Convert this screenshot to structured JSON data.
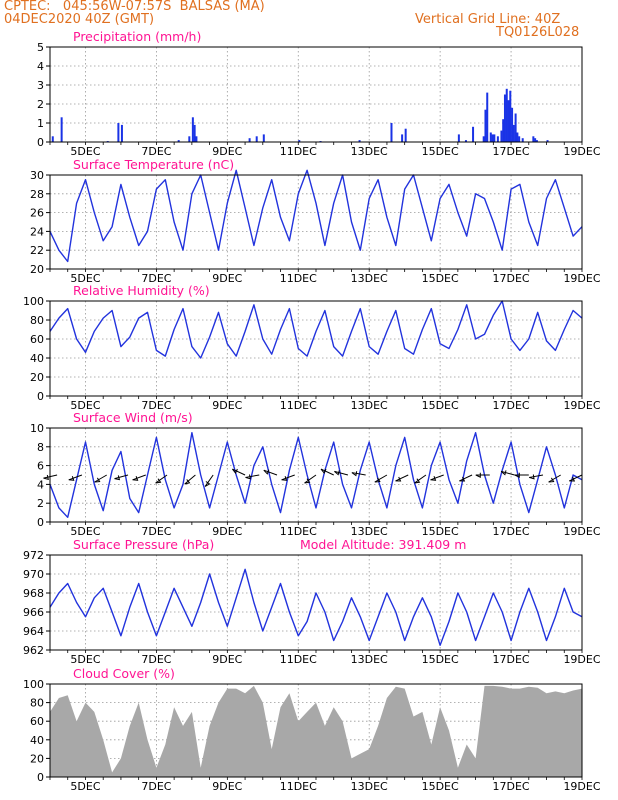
{
  "header": {
    "line1": "CPTEC:   045:56W-07:57S  BALSAS (MA)",
    "line2": "04DEC2020 40Z (GMT)",
    "right1": "Vertical Grid Line: 40Z",
    "right2": "TQ0126L028"
  },
  "colors": {
    "header": "#e07020",
    "title": "#ff1493",
    "line": "#2233dd",
    "bar": "#1a33e6",
    "cloud": "#a8a8a8",
    "grid": "#999999",
    "arrow": "#000000"
  },
  "x_labels": [
    "5DEC",
    "7DEC",
    "9DEC",
    "11DEC",
    "13DEC",
    "15DEC",
    "17DEC",
    "19DEC"
  ],
  "chart_data": [
    {
      "type": "bar",
      "title": "Precipitation (mm/h)",
      "ylim": [
        0,
        5
      ],
      "yticks": [
        "0",
        "1",
        "2",
        "3",
        "4",
        "5"
      ],
      "x_unit": "days since 04DEC",
      "bars": [
        [
          0.05,
          0.3
        ],
        [
          0.3,
          1.3
        ],
        [
          1.6,
          0.05
        ],
        [
          1.9,
          1.0
        ],
        [
          2.0,
          0.9
        ],
        [
          3.6,
          0.1
        ],
        [
          3.9,
          0.3
        ],
        [
          4.0,
          1.3
        ],
        [
          4.05,
          0.9
        ],
        [
          4.1,
          0.3
        ],
        [
          5.6,
          0.2
        ],
        [
          5.8,
          0.3
        ],
        [
          6.0,
          0.4
        ],
        [
          7.0,
          0.1
        ],
        [
          7.6,
          0.05
        ],
        [
          8.7,
          0.1
        ],
        [
          9.6,
          1.0
        ],
        [
          9.9,
          0.4
        ],
        [
          10.0,
          0.7
        ],
        [
          11.5,
          0.4
        ],
        [
          11.7,
          0.1
        ],
        [
          11.9,
          0.8
        ],
        [
          12.2,
          0.3
        ],
        [
          12.25,
          1.7
        ],
        [
          12.3,
          2.6
        ],
        [
          12.4,
          0.5
        ],
        [
          12.45,
          0.4
        ],
        [
          12.5,
          0.4
        ],
        [
          12.6,
          0.3
        ],
        [
          12.7,
          0.6
        ],
        [
          12.75,
          1.2
        ],
        [
          12.8,
          2.5
        ],
        [
          12.85,
          2.8
        ],
        [
          12.9,
          2.2
        ],
        [
          12.95,
          2.7
        ],
        [
          13.0,
          1.8
        ],
        [
          13.05,
          0.9
        ],
        [
          13.1,
          1.5
        ],
        [
          13.15,
          0.5
        ],
        [
          13.2,
          0.3
        ],
        [
          13.3,
          0.2
        ],
        [
          13.6,
          0.3
        ],
        [
          13.65,
          0.2
        ],
        [
          13.7,
          0.1
        ],
        [
          14.0,
          0.1
        ]
      ]
    },
    {
      "type": "line",
      "title": "Surface Temperature (nC)",
      "ylim": [
        20,
        30
      ],
      "yticks": [
        "20",
        "22",
        "24",
        "26",
        "28",
        "30"
      ],
      "x": [
        0.0,
        0.25,
        0.5,
        0.75,
        1.0,
        1.25,
        1.5,
        1.75,
        2.0,
        2.25,
        2.5,
        2.75,
        3.0,
        3.25,
        3.5,
        3.75,
        4.0,
        4.25,
        4.5,
        4.75,
        5.0,
        5.25,
        5.5,
        5.75,
        6.0,
        6.25,
        6.5,
        6.75,
        7.0,
        7.25,
        7.5,
        7.75,
        8.0,
        8.25,
        8.5,
        8.75,
        9.0,
        9.25,
        9.5,
        9.75,
        10.0,
        10.25,
        10.5,
        10.75,
        11.0,
        11.25,
        11.5,
        11.75,
        12.0,
        12.25,
        12.5,
        12.75,
        13.0,
        13.25,
        13.5,
        13.75,
        14.0,
        14.25,
        14.5,
        14.75,
        15.0
      ],
      "y": [
        24.0,
        22.0,
        20.8,
        27.0,
        29.5,
        26.0,
        23.0,
        24.5,
        29.0,
        25.5,
        22.5,
        24.0,
        28.5,
        29.5,
        25.0,
        22.0,
        28.0,
        30.0,
        26.0,
        22.0,
        27.0,
        30.5,
        26.5,
        22.5,
        26.5,
        29.5,
        25.5,
        23.0,
        28.0,
        30.5,
        27.0,
        22.5,
        27.0,
        30.0,
        25.0,
        22.0,
        27.5,
        29.5,
        25.5,
        22.5,
        28.5,
        30.0,
        26.5,
        23.0,
        27.5,
        29.0,
        26.0,
        23.5,
        28.0,
        27.5,
        25.0,
        22.0,
        28.5,
        29.0,
        25.0,
        22.5,
        27.5,
        29.5,
        26.5,
        23.5,
        24.5
      ]
    },
    {
      "type": "line",
      "title": "Relative Humidity (%)",
      "ylim": [
        0,
        100
      ],
      "yticks": [
        "0",
        "20",
        "40",
        "60",
        "80",
        "100"
      ],
      "x": [
        0.0,
        0.25,
        0.5,
        0.75,
        1.0,
        1.25,
        1.5,
        1.75,
        2.0,
        2.25,
        2.5,
        2.75,
        3.0,
        3.25,
        3.5,
        3.75,
        4.0,
        4.25,
        4.5,
        4.75,
        5.0,
        5.25,
        5.5,
        5.75,
        6.0,
        6.25,
        6.5,
        6.75,
        7.0,
        7.25,
        7.5,
        7.75,
        8.0,
        8.25,
        8.5,
        8.75,
        9.0,
        9.25,
        9.5,
        9.75,
        10.0,
        10.25,
        10.5,
        10.75,
        11.0,
        11.25,
        11.5,
        11.75,
        12.0,
        12.25,
        12.5,
        12.75,
        13.0,
        13.25,
        13.5,
        13.75,
        14.0,
        14.25,
        14.5,
        14.75,
        15.0
      ],
      "y": [
        68.0,
        82.0,
        92.0,
        60.0,
        46.0,
        68.0,
        82.0,
        90.0,
        52.0,
        62.0,
        82.0,
        88.0,
        48.0,
        42.0,
        70.0,
        92.0,
        52.0,
        40.0,
        62.0,
        88.0,
        55.0,
        42.0,
        68.0,
        96.0,
        60.0,
        44.0,
        70.0,
        92.0,
        50.0,
        42.0,
        68.0,
        90.0,
        52.0,
        42.0,
        68.0,
        92.0,
        52.0,
        44.0,
        68.0,
        90.0,
        50.0,
        44.0,
        70.0,
        92.0,
        55.0,
        50.0,
        70.0,
        96.0,
        60.0,
        65.0,
        85.0,
        100.0,
        60.0,
        48.0,
        60.0,
        88.0,
        58.0,
        48.0,
        70.0,
        90.0,
        82.0
      ]
    },
    {
      "type": "line",
      "title": "Surface Wind (m/s)",
      "ylim": [
        0,
        10
      ],
      "yticks": [
        "0",
        "2",
        "4",
        "6",
        "8",
        "10"
      ],
      "x": [
        0.0,
        0.25,
        0.5,
        0.75,
        1.0,
        1.25,
        1.5,
        1.75,
        2.0,
        2.25,
        2.5,
        2.75,
        3.0,
        3.25,
        3.5,
        3.75,
        4.0,
        4.25,
        4.5,
        4.75,
        5.0,
        5.25,
        5.5,
        5.75,
        6.0,
        6.25,
        6.5,
        6.75,
        7.0,
        7.25,
        7.5,
        7.75,
        8.0,
        8.25,
        8.5,
        8.75,
        9.0,
        9.25,
        9.5,
        9.75,
        10.0,
        10.25,
        10.5,
        10.75,
        11.0,
        11.25,
        11.5,
        11.75,
        12.0,
        12.25,
        12.5,
        12.75,
        13.0,
        13.25,
        13.5,
        13.75,
        14.0,
        14.25,
        14.5,
        14.75,
        15.0
      ],
      "y": [
        4.0,
        1.5,
        0.5,
        4.5,
        8.5,
        4.0,
        1.2,
        5.5,
        7.5,
        2.5,
        1.0,
        5.0,
        9.0,
        4.5,
        1.5,
        4.0,
        9.5,
        5.0,
        1.5,
        5.0,
        8.5,
        5.0,
        2.0,
        6.0,
        8.0,
        4.0,
        1.0,
        5.5,
        9.0,
        5.0,
        1.5,
        5.5,
        8.5,
        4.0,
        1.5,
        5.5,
        8.5,
        4.5,
        1.5,
        6.0,
        9.0,
        4.5,
        1.5,
        6.0,
        8.5,
        4.5,
        2.0,
        6.5,
        9.5,
        5.0,
        2.0,
        5.5,
        8.5,
        4.0,
        1.0,
        4.5,
        8.0,
        5.0,
        1.5,
        5.0,
        4.5
      ],
      "arrows": [
        [
          0.2,
          193
        ],
        [
          0.9,
          200
        ],
        [
          1.6,
          210
        ],
        [
          2.2,
          195
        ],
        [
          2.7,
          200
        ],
        [
          3.3,
          215
        ],
        [
          4.1,
          220
        ],
        [
          4.6,
          235
        ],
        [
          5.5,
          155
        ],
        [
          5.9,
          190
        ],
        [
          6.4,
          160
        ],
        [
          6.9,
          200
        ],
        [
          7.5,
          215
        ],
        [
          8.0,
          155
        ],
        [
          8.4,
          165
        ],
        [
          8.9,
          170
        ],
        [
          9.5,
          210
        ],
        [
          10.1,
          205
        ],
        [
          10.6,
          215
        ],
        [
          11.1,
          200
        ],
        [
          11.9,
          205
        ],
        [
          12.4,
          180
        ],
        [
          13.1,
          165
        ],
        [
          13.5,
          180
        ],
        [
          13.9,
          190
        ],
        [
          14.4,
          210
        ],
        [
          15.0,
          205
        ]
      ]
    },
    {
      "type": "line",
      "title": "Surface Pressure (hPa)",
      "annotation": "Model Altitude: 391.409  m",
      "ylim": [
        962,
        972
      ],
      "yticks": [
        "962",
        "964",
        "966",
        "968",
        "970",
        "972"
      ],
      "x": [
        0.0,
        0.25,
        0.5,
        0.75,
        1.0,
        1.25,
        1.5,
        1.75,
        2.0,
        2.25,
        2.5,
        2.75,
        3.0,
        3.25,
        3.5,
        3.75,
        4.0,
        4.25,
        4.5,
        4.75,
        5.0,
        5.25,
        5.5,
        5.75,
        6.0,
        6.25,
        6.5,
        6.75,
        7.0,
        7.25,
        7.5,
        7.75,
        8.0,
        8.25,
        8.5,
        8.75,
        9.0,
        9.25,
        9.5,
        9.75,
        10.0,
        10.25,
        10.5,
        10.75,
        11.0,
        11.25,
        11.5,
        11.75,
        12.0,
        12.25,
        12.5,
        12.75,
        13.0,
        13.25,
        13.5,
        13.75,
        14.0,
        14.25,
        14.5,
        14.75,
        15.0
      ],
      "y": [
        966.5,
        968.0,
        969.0,
        967.0,
        965.5,
        967.5,
        968.5,
        966.0,
        963.5,
        966.5,
        969.0,
        966.0,
        963.5,
        966.0,
        968.5,
        966.5,
        964.5,
        967.0,
        970.0,
        967.0,
        964.5,
        967.5,
        970.5,
        967.0,
        964.0,
        966.5,
        969.0,
        966.0,
        963.5,
        965.0,
        968.0,
        966.0,
        963.0,
        965.0,
        967.5,
        965.5,
        963.0,
        965.5,
        968.0,
        966.0,
        963.0,
        965.5,
        967.5,
        965.5,
        962.5,
        965.0,
        968.0,
        966.0,
        963.0,
        965.5,
        968.0,
        966.0,
        963.0,
        966.0,
        968.5,
        966.0,
        963.0,
        965.5,
        968.5,
        966.0,
        965.5
      ]
    },
    {
      "type": "area",
      "title": "Cloud Cover (%)",
      "ylim": [
        0,
        100
      ],
      "yticks": [
        "0",
        "20",
        "40",
        "60",
        "80",
        "100"
      ],
      "x": [
        0.0,
        0.25,
        0.5,
        0.75,
        1.0,
        1.25,
        1.5,
        1.75,
        2.0,
        2.25,
        2.5,
        2.75,
        3.0,
        3.25,
        3.5,
        3.75,
        4.0,
        4.25,
        4.5,
        4.75,
        5.0,
        5.25,
        5.5,
        5.75,
        6.0,
        6.25,
        6.5,
        6.75,
        7.0,
        7.25,
        7.5,
        7.75,
        8.0,
        8.25,
        8.5,
        8.75,
        9.0,
        9.25,
        9.5,
        9.75,
        10.0,
        10.25,
        10.5,
        10.75,
        11.0,
        11.25,
        11.5,
        11.75,
        12.0,
        12.25,
        12.5,
        12.75,
        13.0,
        13.25,
        13.5,
        13.75,
        14.0,
        14.25,
        14.5,
        14.75,
        15.0
      ],
      "y": [
        70.0,
        85.0,
        88.0,
        60.0,
        80.0,
        70.0,
        40.0,
        5.0,
        20.0,
        55.0,
        80.0,
        40.0,
        10.0,
        35.0,
        75.0,
        55.0,
        70.0,
        10.0,
        55.0,
        80.0,
        95.0,
        95.0,
        90.0,
        98.0,
        80.0,
        30.0,
        75.0,
        90.0,
        60.0,
        70.0,
        80.0,
        55.0,
        75.0,
        60.0,
        20.0,
        25.0,
        30.0,
        55.0,
        85.0,
        97.0,
        95.0,
        65.0,
        70.0,
        35.0,
        75.0,
        50.0,
        10.0,
        35.0,
        20.0,
        98.0,
        98.0,
        97.0,
        95.0,
        95.0,
        97.0,
        96.0,
        90.0,
        92.0,
        90.0,
        93.0,
        95.0
      ]
    }
  ]
}
